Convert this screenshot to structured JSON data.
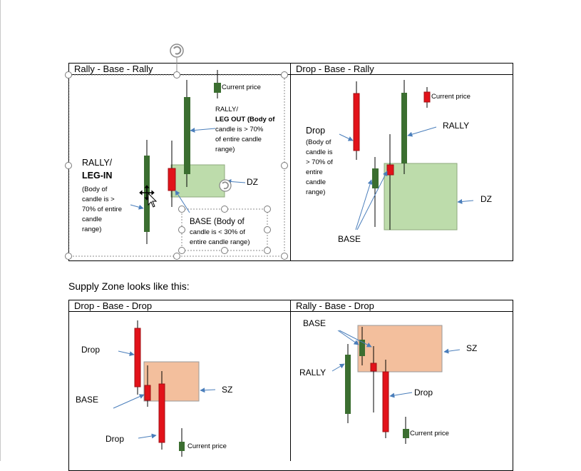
{
  "colors": {
    "bull": "#3b6e30",
    "bear": "#e2121a",
    "demand_zone": "#bddcab",
    "supply_zone": "#f3bf9d",
    "arrow": "#4a7ebb",
    "wick": "#000000"
  },
  "demand_table": {
    "left_header": "Rally - Base - Rally",
    "right_header": "Drop - Base - Rally",
    "rbr": {
      "current_price": "Current price",
      "rally_out": [
        "RALLY/",
        "LEG OUT (Body of",
        "candle is > 70%",
        "of entire candle",
        "range)"
      ],
      "rally_in": [
        "RALLY/",
        "LEG-IN",
        "(Body of",
        "candle is >",
        "70% of entire",
        "candle",
        "range)"
      ],
      "zone": "DZ",
      "base": [
        "BASE (Body of",
        "candle is < 30% of",
        "entire candle range)"
      ]
    },
    "dbr": {
      "current_price": "Current price",
      "rally": "RALLY",
      "drop": [
        "Drop",
        "(Body of",
        "candle is",
        "> 70% of",
        "entire",
        "candle",
        "range)"
      ],
      "zone": "DZ",
      "base": "BASE"
    }
  },
  "caption": "Supply Zone looks like this:",
  "supply_table": {
    "left_header": "Drop - Base - Drop",
    "right_header": "Rally - Base - Drop",
    "dbd": {
      "drop_top": "Drop",
      "base": "BASE",
      "zone": "SZ",
      "drop_bottom": "Drop",
      "current_price": "Current price"
    },
    "rbd": {
      "base": "BASE",
      "zone": "SZ",
      "rally": "RALLY",
      "drop": "Drop",
      "current_price": "Current price"
    }
  }
}
